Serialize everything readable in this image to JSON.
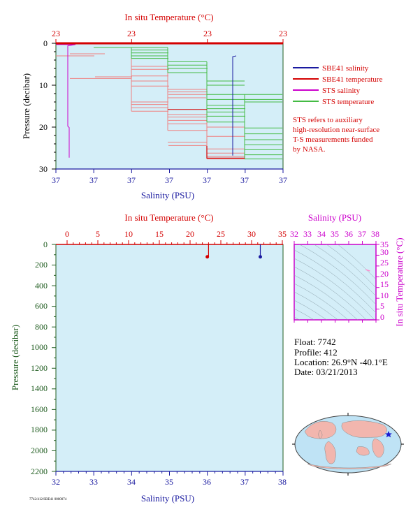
{
  "top_panel": {
    "title_top": "In situ Temperature (°C)",
    "xlabel_bottom": "Salinity (PSU)",
    "ylabel": "Pressure (decibar)",
    "temp_ticks": [
      "23",
      "23",
      "23",
      "23"
    ],
    "sal_ticks": [
      "37",
      "37",
      "37",
      "37",
      "37",
      "37",
      "37"
    ],
    "pressure_ticks": [
      "0",
      "10",
      "20",
      "30"
    ],
    "legend": [
      {
        "label": "SBE41 salinity",
        "color": "#1a1aa0"
      },
      {
        "label": "SBE41 temperature",
        "color": "#d40000"
      },
      {
        "label": "STS salinity",
        "color": "#cc00cc"
      },
      {
        "label": "STS temperature",
        "color": "#44bb44"
      }
    ],
    "note": [
      "STS refers to auxiliary",
      "high-resolution near-surface",
      "T-S measurements funded",
      "by NASA."
    ]
  },
  "bottom_panel": {
    "title_top": "In situ Temperature (°C)",
    "xlabel_bottom": "Salinity (PSU)",
    "ylabel": "Pressure (decibar)",
    "temp_ticks": [
      "0",
      "5",
      "10",
      "15",
      "20",
      "25",
      "30",
      "35"
    ],
    "sal_ticks": [
      "32",
      "33",
      "34",
      "35",
      "36",
      "37",
      "38"
    ],
    "pressure_ticks": [
      "0",
      "200",
      "400",
      "600",
      "800",
      "1000",
      "1200",
      "1400",
      "1600",
      "1800",
      "2000",
      "2200"
    ]
  },
  "ts_panel": {
    "title_top": "Salinity (PSU)",
    "ylabel_right": "In situ Temperature (°C)",
    "sal_ticks": [
      "32",
      "33",
      "34",
      "35",
      "36",
      "37",
      "38"
    ],
    "temp_ticks": [
      "0",
      "5",
      "10",
      "15",
      "20",
      "25",
      "30",
      "35"
    ]
  },
  "float_info": {
    "float": "Float:  7742",
    "profile": "Profile:  412",
    "location": "Location:  26.9°N  -40.1°E",
    "date": "Date:  03/21/2013"
  },
  "footer_code": "7742/412/SBE41 0000074",
  "colors": {
    "panel_bg": "#d4eef8",
    "temperature": "#d40000",
    "salinity": "#1a1aa0",
    "sts_salinity": "#cc00cc",
    "sts_temperature": "#44bb44",
    "sts_temperature_light": "#f08080",
    "axis_green": "#1f5c1f"
  },
  "chart_data": [
    {
      "type": "line",
      "title": "In situ Temperature (°C)",
      "xlabel": "Salinity (PSU)",
      "ylabel": "Pressure (decibar)",
      "ylim": [
        30,
        0
      ],
      "series": [
        {
          "name": "SBE41 salinity",
          "pressure": [
            3,
            5,
            8,
            12,
            16,
            20,
            24,
            27
          ],
          "salinity": [
            37.0,
            37.0,
            37.0,
            37.0,
            37.0,
            37.0,
            37.0,
            37.0
          ]
        },
        {
          "name": "SBE41 temperature",
          "pressure": [
            0,
            5,
            10,
            15,
            20,
            25,
            27
          ],
          "temperature": [
            23.0,
            23.0,
            23.0,
            23.0,
            23.0,
            23.0,
            23.0
          ]
        },
        {
          "name": "STS salinity",
          "pressure": [
            0,
            5,
            10,
            15,
            20,
            25,
            28
          ],
          "salinity": [
            37.0,
            37.0,
            37.0,
            37.0,
            37.0,
            37.0,
            37.0
          ]
        },
        {
          "name": "STS temperature",
          "pressure": [
            1,
            5,
            10,
            15,
            20,
            25,
            28
          ],
          "temperature": [
            23.0,
            23.0,
            23.0,
            23.0,
            23.0,
            23.0,
            23.0
          ]
        }
      ]
    },
    {
      "type": "line",
      "title": "In situ Temperature (°C)",
      "xlabel": "Salinity (PSU)",
      "ylabel": "Pressure (decibar)",
      "xlim_salinity": [
        32,
        38
      ],
      "xlim_temperature": [
        0,
        35
      ],
      "ylim": [
        2200,
        0
      ],
      "series": [
        {
          "name": "temperature",
          "pressure": [
            0,
            120
          ],
          "values": [
            23.0,
            22.8
          ]
        },
        {
          "name": "salinity",
          "pressure": [
            0,
            120
          ],
          "values": [
            37.4,
            37.4
          ]
        }
      ]
    },
    {
      "type": "scatter",
      "title": "Salinity (PSU)",
      "xlabel": "Salinity (PSU)",
      "ylabel": "In situ Temperature (°C)",
      "xlim": [
        32,
        38
      ],
      "ylim": [
        0,
        35
      ],
      "points": [
        {
          "x": 37.4,
          "y": 23.0
        }
      ]
    }
  ]
}
